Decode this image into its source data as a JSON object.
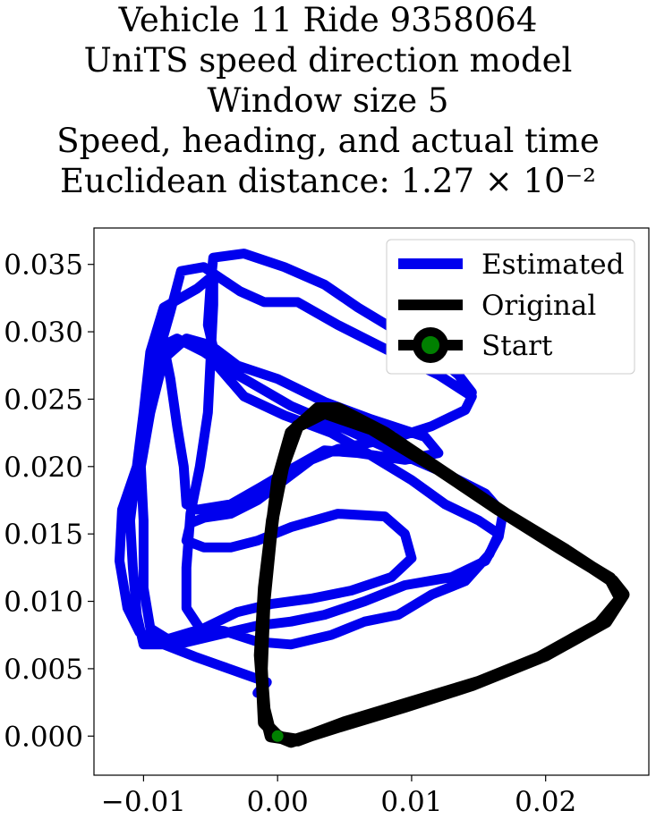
{
  "chart_data": {
    "type": "line",
    "title_lines": [
      "Vehicle 11 Ride 9358064",
      "UniTS speed direction model",
      "Window size 5",
      "Speed, heading, and actual time",
      "Euclidean distance: 1.27 × 10⁻²"
    ],
    "xlim": [
      -0.0137,
      0.0277
    ],
    "ylim": [
      -0.0029,
      0.0377
    ],
    "x_ticks": [
      -0.01,
      0.0,
      0.01,
      0.02
    ],
    "x_tick_labels": [
      "−0.01",
      "0.00",
      "0.01",
      "0.02"
    ],
    "y_ticks": [
      0.0,
      0.005,
      0.01,
      0.015,
      0.02,
      0.025,
      0.03,
      0.035
    ],
    "y_tick_labels": [
      "0.000",
      "0.005",
      "0.010",
      "0.015",
      "0.020",
      "0.025",
      "0.030",
      "0.035"
    ],
    "grid": false,
    "legend_position": "top-right",
    "series": [
      {
        "name": "Estimated",
        "color": "#0000ee",
        "points": [
          [
            -0.0015,
            0.0032
          ],
          [
            -0.0008,
            0.004
          ],
          [
            -0.0025,
            0.0046
          ],
          [
            -0.0042,
            0.0052
          ],
          [
            -0.0062,
            0.0059
          ],
          [
            -0.0085,
            0.0068
          ],
          [
            -0.0103,
            0.0077
          ],
          [
            -0.0112,
            0.0095
          ],
          [
            -0.0118,
            0.013
          ],
          [
            -0.0116,
            0.0168
          ],
          [
            -0.0105,
            0.02
          ],
          [
            -0.0098,
            0.0242
          ],
          [
            -0.009,
            0.028
          ],
          [
            -0.008,
            0.0315
          ],
          [
            -0.0072,
            0.0345
          ],
          [
            -0.0055,
            0.0348
          ],
          [
            -0.0028,
            0.033
          ],
          [
            -0.001,
            0.0322
          ],
          [
            0.0015,
            0.0322
          ],
          [
            0.0045,
            0.0305
          ],
          [
            0.0085,
            0.0285
          ],
          [
            0.012,
            0.0268
          ],
          [
            0.0145,
            0.0252
          ],
          [
            0.014,
            0.0242
          ],
          [
            0.0115,
            0.023
          ],
          [
            0.009,
            0.0222
          ],
          [
            0.007,
            0.0218
          ],
          [
            0.0045,
            0.0213
          ],
          [
            0.0025,
            0.0205
          ],
          [
            0.0005,
            0.019
          ],
          [
            -0.0015,
            0.0175
          ],
          [
            -0.0035,
            0.0165
          ],
          [
            -0.0055,
            0.0162
          ],
          [
            -0.0065,
            0.0158
          ],
          [
            -0.0068,
            0.0145
          ],
          [
            -0.0055,
            0.014
          ],
          [
            -0.0035,
            0.014
          ],
          [
            -0.0015,
            0.0145
          ],
          [
            0.001,
            0.0155
          ],
          [
            0.0045,
            0.0165
          ],
          [
            0.008,
            0.0163
          ],
          [
            0.0095,
            0.015
          ],
          [
            0.01,
            0.0132
          ],
          [
            0.0085,
            0.0118
          ],
          [
            0.0055,
            0.0108
          ],
          [
            0.0025,
            0.0102
          ],
          [
            -0.0005,
            0.0098
          ],
          [
            -0.003,
            0.0092
          ],
          [
            -0.0055,
            0.008
          ],
          [
            -0.0082,
            0.0072
          ],
          [
            -0.0095,
            0.008
          ],
          [
            -0.01,
            0.011
          ],
          [
            -0.01,
            0.016
          ],
          [
            -0.0102,
            0.02
          ],
          [
            -0.0095,
            0.024
          ],
          [
            -0.0085,
            0.028
          ],
          [
            -0.0068,
            0.0295
          ],
          [
            -0.005,
            0.029
          ],
          [
            -0.003,
            0.0275
          ],
          [
            0.0,
            0.0265
          ],
          [
            0.0035,
            0.0248
          ],
          [
            0.007,
            0.0235
          ],
          [
            0.011,
            0.0222
          ],
          [
            0.012,
            0.021
          ],
          [
            0.0095,
            0.0205
          ],
          [
            0.006,
            0.021
          ],
          [
            0.0035,
            0.0212
          ],
          [
            0.001,
            0.0198
          ],
          [
            -0.0012,
            0.0185
          ],
          [
            -0.0035,
            0.0172
          ],
          [
            -0.006,
            0.0168
          ],
          [
            -0.0068,
            0.0172
          ],
          [
            -0.007,
            0.02
          ],
          [
            -0.0075,
            0.023
          ],
          [
            -0.008,
            0.0265
          ],
          [
            -0.0085,
            0.029
          ],
          [
            -0.0075,
            0.0295
          ],
          [
            -0.0055,
            0.0285
          ],
          [
            -0.003,
            0.0268
          ],
          [
            0.001,
            0.0245
          ],
          [
            0.005,
            0.0228
          ],
          [
            0.009,
            0.021
          ],
          [
            0.0125,
            0.0195
          ],
          [
            0.0155,
            0.018
          ],
          [
            0.0168,
            0.0165
          ],
          [
            0.0165,
            0.0148
          ],
          [
            0.0155,
            0.013
          ],
          [
            0.013,
            0.0118
          ],
          [
            0.0095,
            0.0112
          ],
          [
            0.0065,
            0.01
          ],
          [
            0.0035,
            0.009
          ],
          [
            0.001,
            0.0085
          ],
          [
            -0.0015,
            0.0082
          ],
          [
            -0.0045,
            0.0075
          ],
          [
            -0.0075,
            0.0068
          ],
          [
            -0.01,
            0.0068
          ],
          [
            -0.0105,
            0.009
          ],
          [
            -0.0108,
            0.0125
          ],
          [
            -0.011,
            0.016
          ],
          [
            -0.0105,
            0.02
          ],
          [
            -0.01,
            0.024
          ],
          [
            -0.0095,
            0.0285
          ],
          [
            -0.0085,
            0.0318
          ],
          [
            -0.006,
            0.0332
          ],
          [
            -0.0048,
            0.0342
          ],
          [
            -0.0048,
            0.032
          ],
          [
            -0.005,
            0.028
          ],
          [
            -0.0052,
            0.024
          ],
          [
            -0.0058,
            0.02
          ],
          [
            -0.0065,
            0.0165
          ],
          [
            -0.0068,
            0.0125
          ],
          [
            -0.0068,
            0.0095
          ],
          [
            -0.0058,
            0.008
          ],
          [
            -0.004,
            0.0078
          ],
          [
            -0.0015,
            0.007
          ],
          [
            0.001,
            0.0068
          ],
          [
            0.004,
            0.0075
          ],
          [
            0.0065,
            0.0085
          ],
          [
            0.009,
            0.009
          ],
          [
            0.0115,
            0.0105
          ],
          [
            0.014,
            0.0115
          ],
          [
            0.0158,
            0.0135
          ],
          [
            0.0165,
            0.015
          ],
          [
            0.015,
            0.016
          ],
          [
            0.0125,
            0.0172
          ],
          [
            0.01,
            0.019
          ],
          [
            0.007,
            0.0208
          ],
          [
            0.004,
            0.0225
          ],
          [
            0.0005,
            0.0238
          ],
          [
            -0.0025,
            0.0252
          ],
          [
            -0.0045,
            0.0275
          ],
          [
            -0.0052,
            0.0305
          ],
          [
            -0.005,
            0.0335
          ],
          [
            -0.0048,
            0.0355
          ],
          [
            -0.0025,
            0.0358
          ],
          [
            0.0005,
            0.0348
          ],
          [
            0.0035,
            0.0335
          ],
          [
            0.006,
            0.0318
          ],
          [
            0.009,
            0.03
          ],
          [
            0.0115,
            0.0285
          ],
          [
            0.0135,
            0.0268
          ],
          [
            0.0145,
            0.0255
          ]
        ]
      },
      {
        "name": "Original",
        "color": "#000000",
        "points": [
          [
            0.0,
            0.0
          ],
          [
            -0.001,
            0.001
          ],
          [
            -0.0012,
            0.005
          ],
          [
            -0.001,
            0.01
          ],
          [
            -0.0005,
            0.015
          ],
          [
            0.0,
            0.019
          ],
          [
            0.001,
            0.0225
          ],
          [
            0.003,
            0.0243
          ],
          [
            0.0045,
            0.0243
          ],
          [
            0.008,
            0.0225
          ],
          [
            0.0125,
            0.0195
          ],
          [
            0.017,
            0.0165
          ],
          [
            0.0215,
            0.0138
          ],
          [
            0.025,
            0.0115
          ],
          [
            0.0258,
            0.0105
          ],
          [
            0.0245,
            0.0085
          ],
          [
            0.02,
            0.006
          ],
          [
            0.015,
            0.004
          ],
          [
            0.01,
            0.0025
          ],
          [
            0.005,
            0.001
          ],
          [
            0.0015,
            -0.0003
          ],
          [
            -0.0005,
            0.0
          ],
          [
            -0.001,
            0.002
          ],
          [
            -0.0013,
            0.006
          ],
          [
            -0.001,
            0.011
          ],
          [
            -0.0004,
            0.016
          ],
          [
            0.0004,
            0.02
          ],
          [
            0.0015,
            0.023
          ],
          [
            0.0035,
            0.024
          ],
          [
            0.007,
            0.0228
          ],
          [
            0.012,
            0.0198
          ],
          [
            0.0165,
            0.0168
          ],
          [
            0.021,
            0.014
          ],
          [
            0.0248,
            0.0117
          ],
          [
            0.0256,
            0.0102
          ],
          [
            0.024,
            0.0083
          ],
          [
            0.0195,
            0.0058
          ],
          [
            0.0145,
            0.0038
          ],
          [
            0.0095,
            0.0022
          ],
          [
            0.0045,
            0.0007
          ],
          [
            0.001,
            -0.0004
          ],
          [
            0.0,
            0.0
          ]
        ]
      }
    ],
    "start_marker": {
      "name": "Start",
      "x": 0.0,
      "y": 0.0,
      "fill_color": "#008000",
      "edge_color": "#000000"
    }
  }
}
